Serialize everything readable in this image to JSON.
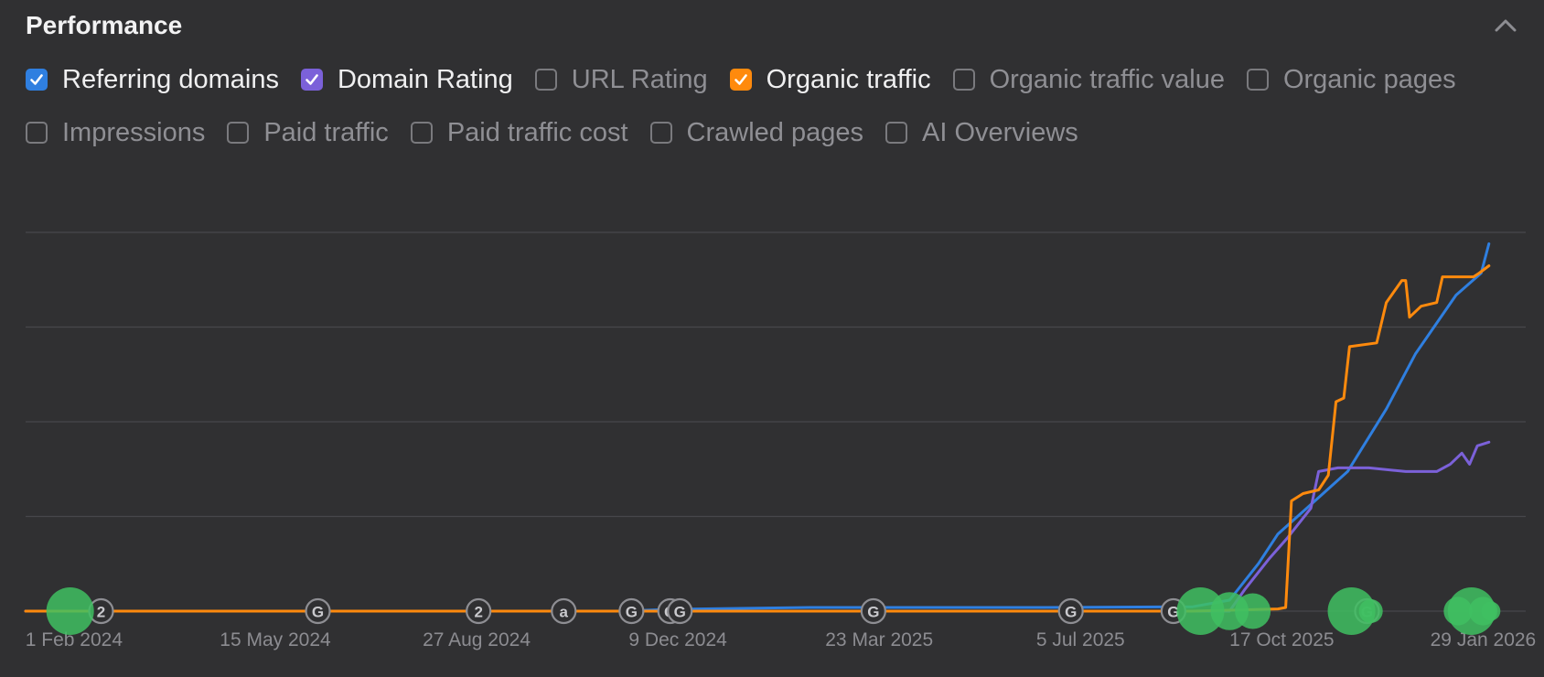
{
  "header": {
    "title": "Performance"
  },
  "toggles": [
    [
      {
        "label": "Referring domains",
        "checked": true,
        "color": "#2f7fe0"
      },
      {
        "label": "Domain Rating",
        "checked": true,
        "color": "#7b61d9"
      },
      {
        "label": "URL Rating",
        "checked": false,
        "color": ""
      },
      {
        "label": "Organic traffic",
        "checked": true,
        "color": "#ff8a0d"
      },
      {
        "label": "Organic traffic value",
        "checked": false,
        "color": ""
      },
      {
        "label": "Organic pages",
        "checked": false,
        "color": ""
      }
    ],
    [
      {
        "label": "Impressions",
        "checked": false,
        "color": ""
      },
      {
        "label": "Paid traffic",
        "checked": false,
        "color": ""
      },
      {
        "label": "Paid traffic cost",
        "checked": false,
        "color": ""
      },
      {
        "label": "Crawled pages",
        "checked": false,
        "color": ""
      },
      {
        "label": "AI Overviews",
        "checked": false,
        "color": ""
      }
    ]
  ],
  "chart_data": {
    "type": "line",
    "x_axis": "date",
    "x_range": [
      "2024-01-07",
      "2026-02-20"
    ],
    "y_range": [
      0,
      100
    ],
    "y_units": "relative (no y-axis labels shown)",
    "gridlines": 5,
    "x_ticks": [
      "1 Feb 2024",
      "15 May 2024",
      "27 Aug 2024",
      "9 Dec 2024",
      "23 Mar 2025",
      "5 Jul 2025",
      "17 Oct 2025",
      "29 Jan 2026"
    ],
    "series": [
      {
        "name": "Referring domains",
        "color": "#2f7fe0",
        "points": [
          [
            "2024-01-07",
            0
          ],
          [
            "2024-11-10",
            0
          ],
          [
            "2024-12-05",
            0.5
          ],
          [
            "2025-02-15",
            1
          ],
          [
            "2025-06-15",
            1
          ],
          [
            "2025-09-01",
            1.2
          ],
          [
            "2025-09-20",
            3
          ],
          [
            "2025-10-05",
            13
          ],
          [
            "2025-10-15",
            21
          ],
          [
            "2025-11-01",
            29
          ],
          [
            "2025-11-20",
            38
          ],
          [
            "2025-12-10",
            55
          ],
          [
            "2025-12-25",
            70
          ],
          [
            "2026-01-15",
            86
          ],
          [
            "2026-01-28",
            92
          ],
          [
            "2026-02-01",
            100
          ]
        ]
      },
      {
        "name": "Domain Rating",
        "color": "#7b61d9",
        "points": [
          [
            "2024-01-07",
            0
          ],
          [
            "2025-09-20",
            0
          ],
          [
            "2025-09-28",
            6
          ],
          [
            "2025-10-10",
            14
          ],
          [
            "2025-10-20",
            20
          ],
          [
            "2025-11-01",
            28
          ],
          [
            "2025-11-05",
            38
          ],
          [
            "2025-11-15",
            39
          ],
          [
            "2025-12-01",
            39
          ],
          [
            "2025-12-20",
            38
          ],
          [
            "2026-01-05",
            38
          ],
          [
            "2026-01-12",
            40
          ],
          [
            "2026-01-18",
            43
          ],
          [
            "2026-01-22",
            40
          ],
          [
            "2026-01-26",
            45
          ],
          [
            "2026-02-01",
            46
          ]
        ]
      },
      {
        "name": "Organic traffic",
        "color": "#ff8a0d",
        "points": [
          [
            "2024-01-07",
            0
          ],
          [
            "2025-09-01",
            0
          ],
          [
            "2025-10-15",
            0.6
          ],
          [
            "2025-10-19",
            1
          ],
          [
            "2025-10-22",
            30
          ],
          [
            "2025-10-28",
            32
          ],
          [
            "2025-11-05",
            33
          ],
          [
            "2025-11-10",
            37
          ],
          [
            "2025-11-14",
            57
          ],
          [
            "2025-11-18",
            58
          ],
          [
            "2025-11-21",
            72
          ],
          [
            "2025-12-05",
            73
          ],
          [
            "2025-12-10",
            84
          ],
          [
            "2025-12-18",
            90
          ],
          [
            "2025-12-20",
            90
          ],
          [
            "2025-12-22",
            80
          ],
          [
            "2025-12-28",
            83
          ],
          [
            "2026-01-05",
            84
          ],
          [
            "2026-01-08",
            91
          ],
          [
            "2026-01-24",
            91
          ],
          [
            "2026-01-27",
            92
          ],
          [
            "2026-02-01",
            94
          ]
        ]
      }
    ],
    "event_markers": [
      {
        "date": "2024-02-15",
        "glyph": "2"
      },
      {
        "date": "2024-06-06",
        "glyph": "G"
      },
      {
        "date": "2024-08-28",
        "glyph": "2"
      },
      {
        "date": "2024-10-11",
        "glyph": "a"
      },
      {
        "date": "2024-11-15",
        "glyph": "G"
      },
      {
        "date": "2024-12-05",
        "glyph": "G"
      },
      {
        "date": "2024-12-10",
        "glyph": "G"
      },
      {
        "date": "2025-03-20",
        "glyph": "G"
      },
      {
        "date": "2025-06-30",
        "glyph": "G"
      },
      {
        "date": "2025-08-22",
        "glyph": "G"
      },
      {
        "date": "2025-11-30",
        "glyph": "G"
      }
    ],
    "annotations": [
      {
        "date": "2024-01-30",
        "size": 1.0
      },
      {
        "date": "2025-09-05",
        "size": 1.0
      },
      {
        "date": "2025-09-20",
        "size": 0.8
      },
      {
        "date": "2025-10-02",
        "size": 0.75
      },
      {
        "date": "2025-11-22",
        "size": 1.0
      },
      {
        "date": "2025-12-02",
        "size": 0.5
      },
      {
        "date": "2026-01-16",
        "size": 0.6
      },
      {
        "date": "2026-01-23",
        "size": 1.0
      },
      {
        "date": "2026-01-29",
        "size": 0.6
      },
      {
        "date": "2026-02-02",
        "size": 0.4
      }
    ]
  }
}
